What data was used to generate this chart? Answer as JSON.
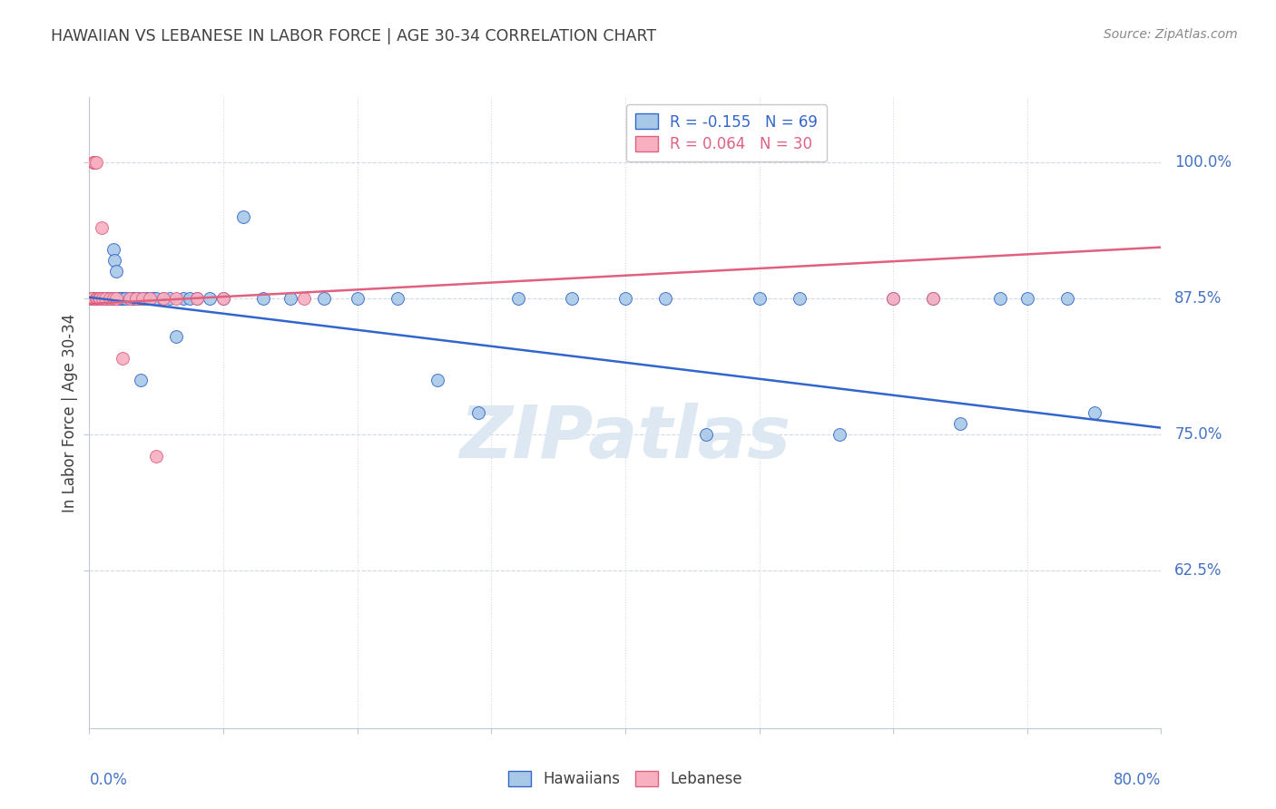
{
  "title": "HAWAIIAN VS LEBANESE IN LABOR FORCE | AGE 30-34 CORRELATION CHART",
  "source": "Source: ZipAtlas.com",
  "ylabel": "In Labor Force | Age 30-34",
  "ytick_labels": [
    "100.0%",
    "87.5%",
    "75.0%",
    "62.5%"
  ],
  "ytick_values": [
    1.0,
    0.875,
    0.75,
    0.625
  ],
  "xmin": 0.0,
  "xmax": 0.8,
  "ymin": 0.48,
  "ymax": 1.06,
  "legend_blue_r": "-0.155",
  "legend_blue_n": "69",
  "legend_pink_r": "0.064",
  "legend_pink_n": "30",
  "hawaiians_color": "#a8c8e8",
  "lebanese_color": "#f8b0c0",
  "trendline_blue": "#3366cc",
  "trendline_pink": "#e06080",
  "watermark_text": "ZIPatlas",
  "watermark_color": "#dde8f3",
  "title_color": "#404040",
  "axis_label_color": "#4472c4",
  "grid_color": "#d0d8e8",
  "hawaiians_x": [
    0.002,
    0.003,
    0.004,
    0.005,
    0.006,
    0.006,
    0.007,
    0.007,
    0.008,
    0.009,
    0.009,
    0.01,
    0.01,
    0.011,
    0.012,
    0.013,
    0.014,
    0.015,
    0.016,
    0.017,
    0.018,
    0.019,
    0.02,
    0.021,
    0.022,
    0.024,
    0.025,
    0.027,
    0.03,
    0.032,
    0.034,
    0.036,
    0.038,
    0.04,
    0.043,
    0.045,
    0.048,
    0.05,
    0.055,
    0.06,
    0.065,
    0.07,
    0.075,
    0.08,
    0.09,
    0.1,
    0.115,
    0.13,
    0.15,
    0.175,
    0.2,
    0.23,
    0.26,
    0.29,
    0.32,
    0.36,
    0.4,
    0.43,
    0.46,
    0.5,
    0.53,
    0.56,
    0.6,
    0.63,
    0.65,
    0.68,
    0.7,
    0.73,
    0.75
  ],
  "hawaiians_y": [
    0.875,
    0.875,
    0.875,
    0.875,
    0.875,
    0.875,
    0.875,
    0.875,
    0.875,
    0.875,
    0.875,
    0.875,
    0.875,
    0.875,
    0.875,
    0.875,
    0.875,
    0.875,
    0.875,
    0.875,
    0.92,
    0.91,
    0.9,
    0.875,
    0.875,
    0.875,
    0.875,
    0.875,
    0.875,
    0.875,
    0.875,
    0.875,
    0.8,
    0.875,
    0.875,
    0.875,
    0.875,
    0.875,
    0.875,
    0.875,
    0.84,
    0.875,
    0.875,
    0.875,
    0.875,
    0.875,
    0.95,
    0.875,
    0.875,
    0.875,
    0.875,
    0.875,
    0.8,
    0.77,
    0.875,
    0.875,
    0.875,
    0.875,
    0.75,
    0.875,
    0.875,
    0.75,
    0.875,
    0.875,
    0.76,
    0.875,
    0.875,
    0.875,
    0.77
  ],
  "lebanese_x": [
    0.001,
    0.002,
    0.003,
    0.003,
    0.004,
    0.004,
    0.005,
    0.005,
    0.006,
    0.007,
    0.008,
    0.009,
    0.01,
    0.012,
    0.015,
    0.018,
    0.02,
    0.025,
    0.03,
    0.035,
    0.04,
    0.045,
    0.05,
    0.055,
    0.065,
    0.08,
    0.1,
    0.16,
    0.6,
    0.63
  ],
  "lebanese_y": [
    0.875,
    0.875,
    1.0,
    1.0,
    1.0,
    1.0,
    1.0,
    0.875,
    0.875,
    0.875,
    0.875,
    0.94,
    0.875,
    0.875,
    0.875,
    0.875,
    0.875,
    0.82,
    0.875,
    0.875,
    0.875,
    0.875,
    0.73,
    0.875,
    0.875,
    0.875,
    0.875,
    0.875,
    0.875,
    0.875
  ],
  "haw_trend_x": [
    0.0,
    0.8
  ],
  "haw_trend_y": [
    0.876,
    0.756
  ],
  "leb_trend_x": [
    0.0,
    0.8
  ],
  "leb_trend_y": [
    0.87,
    0.922
  ]
}
